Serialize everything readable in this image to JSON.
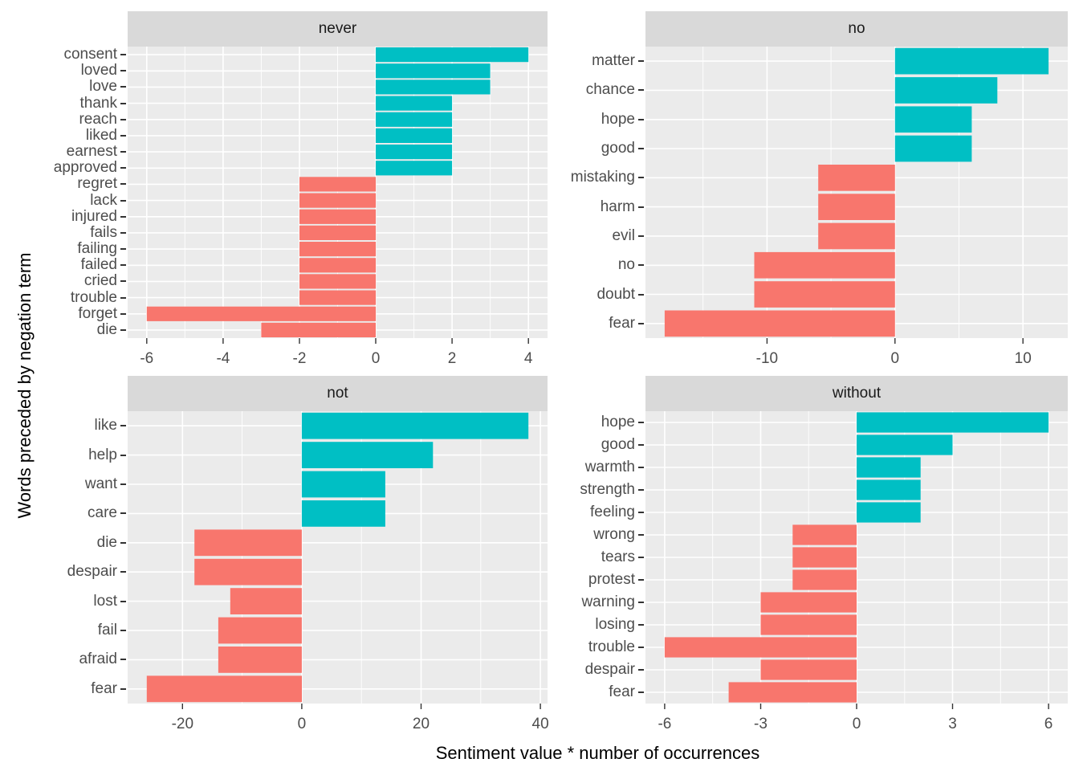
{
  "figure": {
    "y_axis_title": "Words preceded by negation term",
    "x_axis_title": "Sentiment value * number of occurrences",
    "colors": {
      "positive_fill": "#00BFC4",
      "negative_fill": "#F8766D",
      "panel_background": "#EBEBEB",
      "strip_background": "#D9D9D9",
      "grid_line": "#FFFFFF",
      "axis_tick": "#333333",
      "tick_label_text": "#4D4D4D",
      "strip_text": "#1A1A1A",
      "axis_title_text": "#000000"
    }
  },
  "chart_data": [
    {
      "type": "bar",
      "orientation": "horizontal",
      "facet": "never",
      "title": "never",
      "xlabel": "Sentiment value * number of occurrences",
      "ylabel": "Words preceded by negation term",
      "categories": [
        "consent",
        "loved",
        "love",
        "thank",
        "reach",
        "liked",
        "earnest",
        "approved",
        "regret",
        "lack",
        "injured",
        "fails",
        "failing",
        "failed",
        "cried",
        "trouble",
        "forget",
        "die"
      ],
      "values": [
        4,
        3,
        3,
        2,
        2,
        2,
        2,
        2,
        -2,
        -2,
        -2,
        -2,
        -2,
        -2,
        -2,
        -2,
        -6,
        -3
      ],
      "xlim": [
        -6.5,
        4.5
      ],
      "x_major_ticks": [
        -6,
        -4,
        -2,
        0,
        2,
        4
      ],
      "x_minor_ticks": [
        -5,
        -3,
        -1,
        1,
        3
      ],
      "grid": true,
      "legend": "none"
    },
    {
      "type": "bar",
      "orientation": "horizontal",
      "facet": "no",
      "title": "no",
      "xlabel": "Sentiment value * number of occurrences",
      "ylabel": "Words preceded by negation term",
      "categories": [
        "matter",
        "chance",
        "hope",
        "good",
        "mistaking",
        "harm",
        "evil",
        "no",
        "doubt",
        "fear"
      ],
      "values": [
        12,
        8,
        6,
        6,
        -6,
        -6,
        -6,
        -11,
        -11,
        -18
      ],
      "xlim": [
        -19.5,
        13.5
      ],
      "x_major_ticks": [
        -10,
        0,
        10
      ],
      "x_minor_ticks": [
        -15,
        -5,
        5
      ],
      "grid": true,
      "legend": "none"
    },
    {
      "type": "bar",
      "orientation": "horizontal",
      "facet": "not",
      "title": "not",
      "xlabel": "Sentiment value * number of occurrences",
      "ylabel": "Words preceded by negation term",
      "categories": [
        "like",
        "help",
        "want",
        "care",
        "die",
        "despair",
        "lost",
        "fail",
        "afraid",
        "fear"
      ],
      "values": [
        38,
        22,
        14,
        14,
        -18,
        -18,
        -12,
        -14,
        -14,
        -26
      ],
      "xlim": [
        -29.2,
        41.2
      ],
      "x_major_ticks": [
        -20,
        0,
        20,
        40
      ],
      "x_minor_ticks": [
        -10,
        10,
        30
      ],
      "grid": true,
      "legend": "none"
    },
    {
      "type": "bar",
      "orientation": "horizontal",
      "facet": "without",
      "title": "without",
      "xlabel": "Sentiment value * number of occurrences",
      "ylabel": "Words preceded by negation term",
      "categories": [
        "hope",
        "good",
        "warmth",
        "strength",
        "feeling",
        "wrong",
        "tears",
        "protest",
        "warning",
        "losing",
        "trouble",
        "despair",
        "fear"
      ],
      "values": [
        6,
        3,
        2,
        2,
        2,
        -2,
        -2,
        -2,
        -3,
        -3,
        -6,
        -3,
        -4
      ],
      "xlim": [
        -6.6,
        6.6
      ],
      "x_major_ticks": [
        -6,
        -3,
        0,
        3,
        6
      ],
      "x_minor_ticks": [
        -4.5,
        -1.5,
        1.5,
        4.5
      ],
      "grid": true,
      "legend": "none"
    }
  ]
}
